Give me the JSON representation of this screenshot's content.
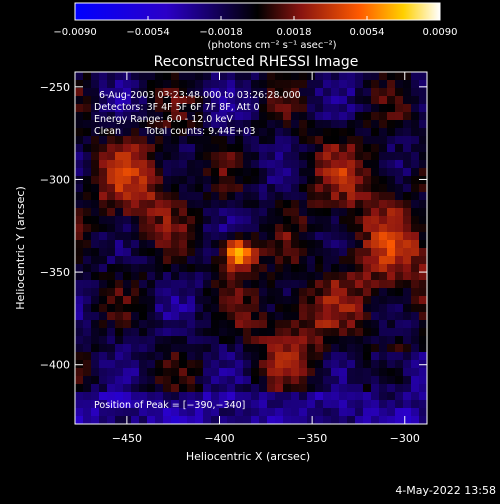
{
  "chart_data": {
    "type": "heatmap",
    "title": "Reconstructed RHESSI Image",
    "xlabel": "Heliocentric X (arcsec)",
    "ylabel": "Heliocentric Y (arcsec)",
    "xlim": [
      -478,
      -288
    ],
    "ylim": [
      -432,
      -242
    ],
    "x_ticks": [
      -450,
      -400,
      -350,
      -300
    ],
    "y_ticks": [
      -250,
      -300,
      -350,
      -400
    ],
    "x_tick_labels": [
      "−450",
      "−400",
      "−350",
      "−300"
    ],
    "y_tick_labels": [
      "−250",
      "−300",
      "−350",
      "−400"
    ],
    "colorbar": {
      "range": [
        -0.009,
        0.009
      ],
      "ticks": [
        -0.009,
        -0.0054,
        -0.0018,
        0.0018,
        0.0054,
        0.009
      ],
      "tick_labels": [
        "−0.0090",
        "−0.0054",
        "−0.0018",
        "0.0018",
        "0.0054",
        "0.0090"
      ],
      "unit_label": "(photons cm⁻² s⁻¹ asec⁻²)",
      "colormap": [
        "#0000ff",
        "#2b00c8",
        "#000000",
        "#8a1410",
        "#ff5a00",
        "#ffd000",
        "#ffffff"
      ]
    },
    "annotations": {
      "time_range": "6-Aug-2003 03:23:48.000 to 03:26:28.000",
      "detectors": "Detectors: 3F 4F 5F 6F 7F 8F, Att 0",
      "energy_range": "Energy Range: 6.0 - 12.0 keV",
      "clean": "Clean",
      "total_counts": "Total counts: 9.44E+03",
      "peak_position": "Position of Peak = [−390,−340]"
    },
    "peak": {
      "x": -390,
      "y": -340,
      "value": 0.009
    },
    "secondary_sources": [
      {
        "x": -445,
        "y": -305,
        "value": 0.0035
      },
      {
        "x": -305,
        "y": -345,
        "value": 0.0035
      },
      {
        "x": -360,
        "y": -380,
        "value": 0.003
      },
      {
        "x": -330,
        "y": -300,
        "value": 0.0025
      }
    ]
  },
  "footer": {
    "timestamp": "4-May-2022 13:58"
  }
}
